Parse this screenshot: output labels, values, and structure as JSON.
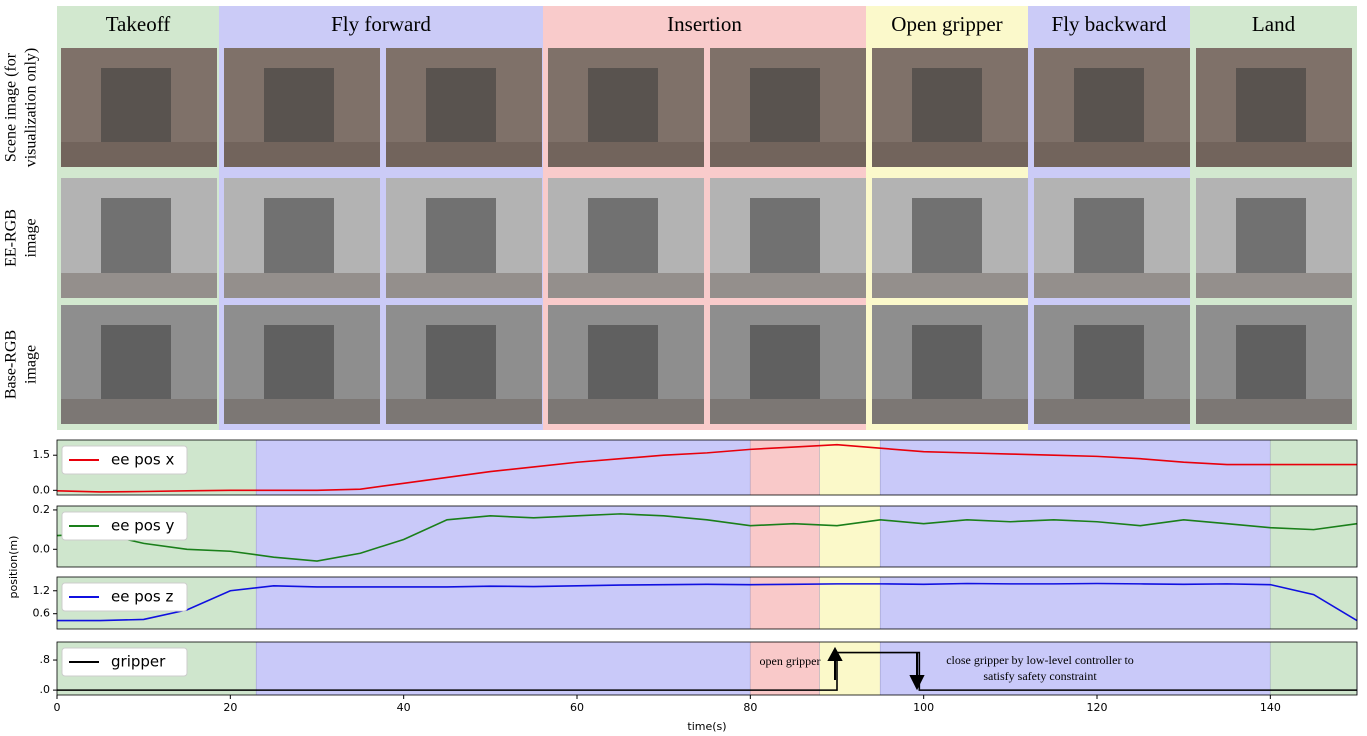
{
  "phases": [
    {
      "label": "Takeoff",
      "color": "#d2e8cf"
    },
    {
      "label": "Fly forward",
      "color": "#cbcbf7"
    },
    {
      "label": "Insertion",
      "color": "#f9cbcb"
    },
    {
      "label": "Open gripper",
      "color": "#fbf9cb"
    },
    {
      "label": "Fly backward",
      "color": "#cbcbf7"
    },
    {
      "label": "Land",
      "color": "#d2e8cf"
    }
  ],
  "row_labels": [
    [
      "Scene image (for",
      "visualization only)"
    ],
    [
      "EE-RGB",
      "image"
    ],
    [
      "Base-RGB",
      "image"
    ]
  ],
  "time_regions": [
    {
      "start": 0,
      "end": 23,
      "color": "#cfe6cd"
    },
    {
      "start": 23,
      "end": 80,
      "color": "#c9c9f9"
    },
    {
      "start": 80,
      "end": 88,
      "color": "#f9c9c9"
    },
    {
      "start": 88,
      "end": 95,
      "color": "#fbf9c9"
    },
    {
      "start": 95,
      "end": 140,
      "color": "#c9c9f9"
    },
    {
      "start": 140,
      "end": 150,
      "color": "#cfe6cd"
    }
  ],
  "chart_data": [
    {
      "type": "line",
      "xlim": [
        0,
        150
      ],
      "ylim": [
        -0.2,
        2.15
      ],
      "yticks": [
        {
          "value": 0,
          "label": "0.0"
        },
        1.5
      ],
      "x": [
        0,
        5,
        10,
        15,
        20,
        25,
        30,
        35,
        40,
        45,
        50,
        55,
        60,
        65,
        70,
        75,
        80,
        85,
        90,
        95,
        100,
        105,
        110,
        115,
        120,
        125,
        130,
        135,
        140,
        145,
        150
      ],
      "series": [
        {
          "name": "ee pos x",
          "color": "#e8000b",
          "values": [
            -0.02,
            -0.07,
            -0.05,
            -0.02,
            0,
            0,
            0,
            0.05,
            0.3,
            0.55,
            0.8,
            1.0,
            1.2,
            1.35,
            1.5,
            1.6,
            1.75,
            1.85,
            1.95,
            1.8,
            1.65,
            1.6,
            1.55,
            1.5,
            1.45,
            1.35,
            1.2,
            1.1,
            1.1,
            1.1,
            1.1
          ]
        }
      ]
    },
    {
      "type": "line",
      "xlim": [
        0,
        150
      ],
      "ylim": [
        -0.09,
        0.22
      ],
      "ylabel": "position(m)",
      "yticks": [
        {
          "value": 0,
          "label": "0.0"
        },
        0.2
      ],
      "x": [
        0,
        5,
        10,
        15,
        20,
        25,
        30,
        35,
        40,
        45,
        50,
        55,
        60,
        65,
        70,
        75,
        80,
        85,
        90,
        95,
        100,
        105,
        110,
        115,
        120,
        125,
        130,
        135,
        140,
        145,
        150
      ],
      "series": [
        {
          "name": "ee pos y",
          "color": "#1a7f1a",
          "values": [
            0.07,
            0.08,
            0.03,
            0,
            -0.01,
            -0.04,
            -0.06,
            -0.02,
            0.05,
            0.15,
            0.17,
            0.16,
            0.17,
            0.18,
            0.17,
            0.15,
            0.12,
            0.13,
            0.12,
            0.15,
            0.13,
            0.15,
            0.14,
            0.15,
            0.14,
            0.12,
            0.15,
            0.13,
            0.11,
            0.1,
            0.13
          ]
        }
      ]
    },
    {
      "type": "line",
      "xlim": [
        0,
        150
      ],
      "ylim": [
        0.2,
        1.56
      ],
      "yticks": [
        0.6,
        1.2
      ],
      "x": [
        0,
        5,
        10,
        15,
        20,
        25,
        30,
        35,
        40,
        45,
        50,
        55,
        60,
        65,
        70,
        75,
        80,
        85,
        90,
        95,
        100,
        105,
        110,
        115,
        120,
        125,
        130,
        135,
        140,
        145,
        150
      ],
      "series": [
        {
          "name": "ee pos z",
          "color": "#1010e0",
          "values": [
            0.42,
            0.42,
            0.45,
            0.7,
            1.2,
            1.33,
            1.3,
            1.3,
            1.3,
            1.3,
            1.32,
            1.31,
            1.33,
            1.35,
            1.36,
            1.37,
            1.36,
            1.37,
            1.38,
            1.38,
            1.37,
            1.39,
            1.38,
            1.38,
            1.39,
            1.38,
            1.37,
            1.38,
            1.36,
            1.1,
            0.42
          ]
        }
      ]
    },
    {
      "type": "line",
      "xlim": [
        0,
        150
      ],
      "ylim": [
        -0.13,
        1.28
      ],
      "yticks": [
        {
          "value": 0,
          "label": ".0"
        },
        {
          "value": 0.8,
          "label": ".8"
        }
      ],
      "xticks": [
        0,
        20,
        40,
        60,
        80,
        100,
        120,
        140
      ],
      "xlabel": "time(s)",
      "x": [
        0,
        90,
        90,
        99.5,
        99.5,
        150
      ],
      "series": [
        {
          "name": "gripper",
          "color": "#000000",
          "values": [
            0,
            0,
            1.0,
            1.0,
            0,
            0
          ]
        }
      ],
      "annotations": [
        {
          "text": [
            "open gripper"
          ]
        },
        {
          "text": [
            "close gripper by low-level controller to",
            "satisfy safety constraint"
          ]
        }
      ]
    }
  ]
}
